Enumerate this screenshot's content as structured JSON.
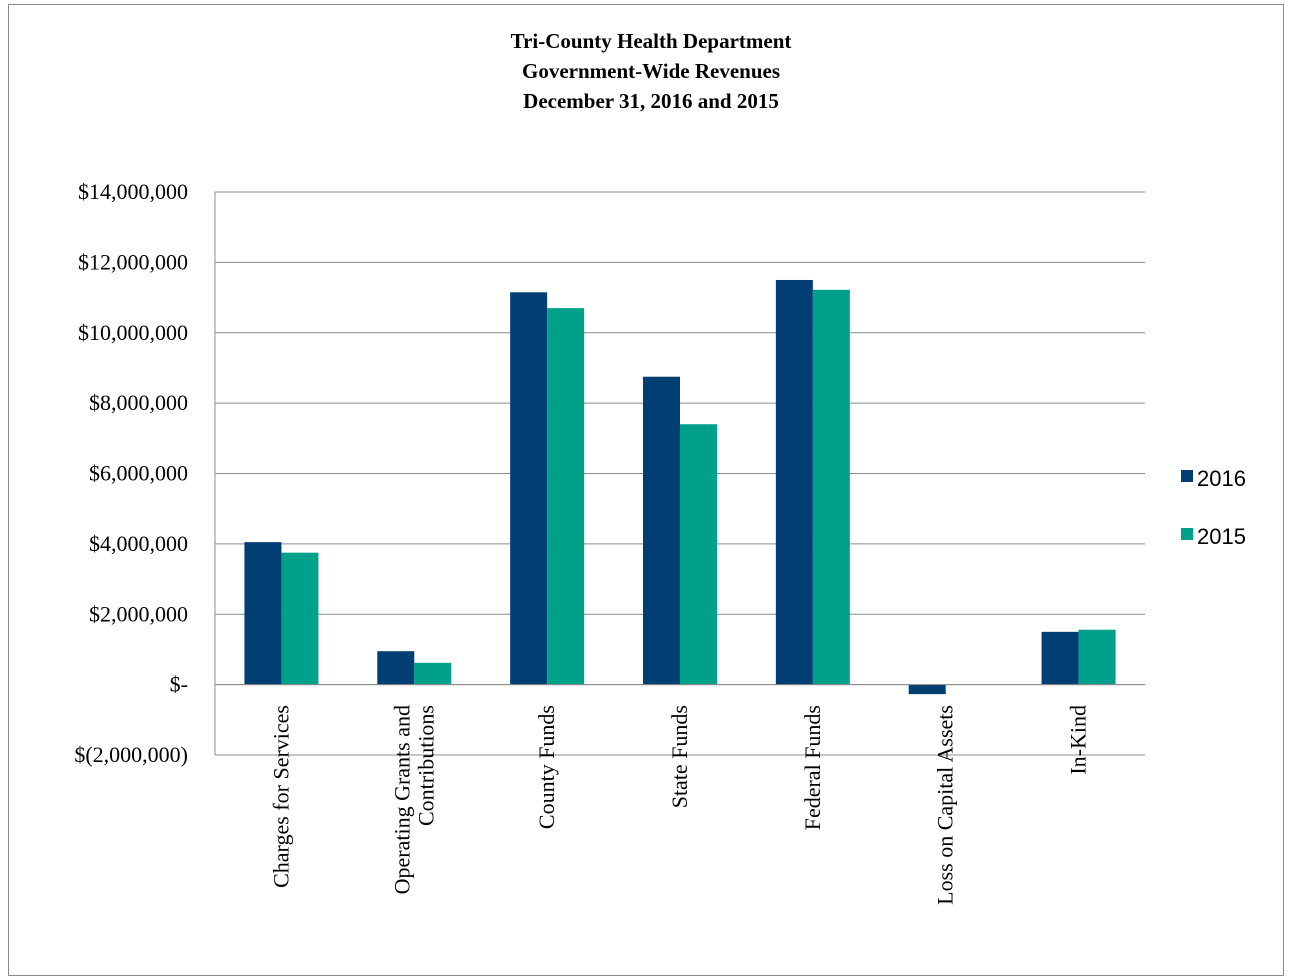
{
  "chart_data": {
    "type": "bar",
    "title": [
      "Tri-County  Health Department",
      "Government-Wide Revenues",
      "December 31, 2016 and 2015"
    ],
    "categories": [
      [
        "Charges for Services"
      ],
      [
        "Operating Grants and",
        "Contributions"
      ],
      [
        "County Funds"
      ],
      [
        "State Funds"
      ],
      [
        "Federal Funds"
      ],
      [
        "Loss on Capital Assets"
      ],
      [
        "In-Kind"
      ]
    ],
    "series": [
      {
        "name": "2016",
        "color": "#003e74",
        "values": [
          4050000,
          950000,
          11150000,
          8750000,
          11500000,
          -270000,
          1500000
        ]
      },
      {
        "name": "2015",
        "color": "#00a08a",
        "values": [
          3750000,
          620000,
          10700000,
          7400000,
          11220000,
          0,
          1560000
        ]
      }
    ],
    "ylim": [
      -2000000,
      14000000
    ],
    "yticks": [
      14000000,
      12000000,
      10000000,
      8000000,
      6000000,
      4000000,
      2000000,
      0,
      -2000000
    ],
    "ytick_labels": [
      "$14,000,000",
      "$12,000,000",
      "$10,000,000",
      "$8,000,000",
      "$6,000,000",
      "$4,000,000",
      "$2,000,000",
      "$-",
      "$(2,000,000)"
    ],
    "grid": true,
    "legend_position": "right"
  }
}
